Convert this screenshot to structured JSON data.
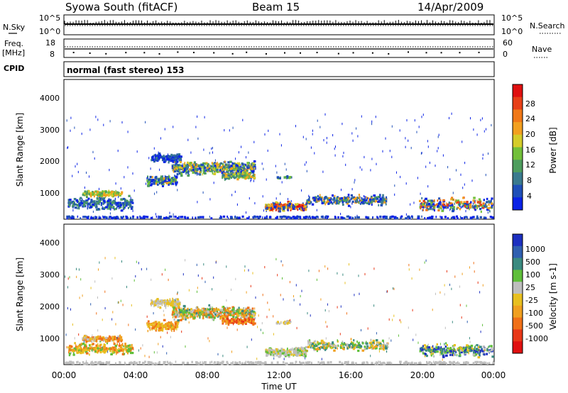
{
  "header": {
    "station": "Syowa South (fitACF)",
    "beam": "Beam 15",
    "date": "14/Apr/2009"
  },
  "nsky_panel": {
    "left_label": "N.Sky",
    "right_label": "N.Search",
    "left_ticks": [
      "10^5",
      "10^0"
    ],
    "right_ticks": [
      "10^5",
      "10^0"
    ]
  },
  "freq_panel": {
    "left_label_1": "Freq.",
    "left_label_2": "[MHz]",
    "right_label": "Nave",
    "left_ticks": [
      "18",
      "8"
    ],
    "right_ticks": [
      "60",
      "0"
    ]
  },
  "cpid": {
    "label": "CPID",
    "text": "normal (fast stereo) 153"
  },
  "chart_data": [
    {
      "type": "heatmap",
      "title": "",
      "xlabel": "Time UT",
      "ylabel": "Slant Range [km]",
      "xlim": [
        0,
        24
      ],
      "ylim": [
        180,
        4500
      ],
      "x_ticks": [
        "00:00",
        "04:00",
        "08:00",
        "12:00",
        "16:00",
        "20:00",
        "00:00"
      ],
      "y_ticks": [
        1000,
        2000,
        3000,
        4000
      ],
      "colorbar": {
        "label": "Power [dB]",
        "ticks": [
          "4",
          "8",
          "12",
          "16",
          "20",
          "24",
          "28"
        ],
        "colors": [
          "#0a22e6",
          "#1f4fb8",
          "#3a7a8e",
          "#4e9d5e",
          "#72c03a",
          "#d4cc2a",
          "#f2a020",
          "#f07818",
          "#e84018",
          "#e01010"
        ]
      }
    },
    {
      "type": "heatmap",
      "title": "",
      "xlabel": "Time UT",
      "ylabel": "Slant Range [km]",
      "xlim": [
        0,
        24
      ],
      "ylim": [
        180,
        4500
      ],
      "x_ticks": [
        "00:00",
        "04:00",
        "08:00",
        "12:00",
        "16:00",
        "20:00",
        "00:00"
      ],
      "y_ticks": [
        1000,
        2000,
        3000,
        4000
      ],
      "colorbar": {
        "label": "Velocity [m s-1]",
        "ticks": [
          "1000",
          "500",
          "100",
          "25",
          "-25",
          "-100",
          "-500",
          "-1000"
        ],
        "colors": [
          "#1c2fc0",
          "#2f5fb0",
          "#3a8a80",
          "#5fbf3a",
          "#bebebe",
          "#e8c020",
          "#f0a020",
          "#f07018",
          "#e83818",
          "#e01010"
        ]
      }
    }
  ]
}
